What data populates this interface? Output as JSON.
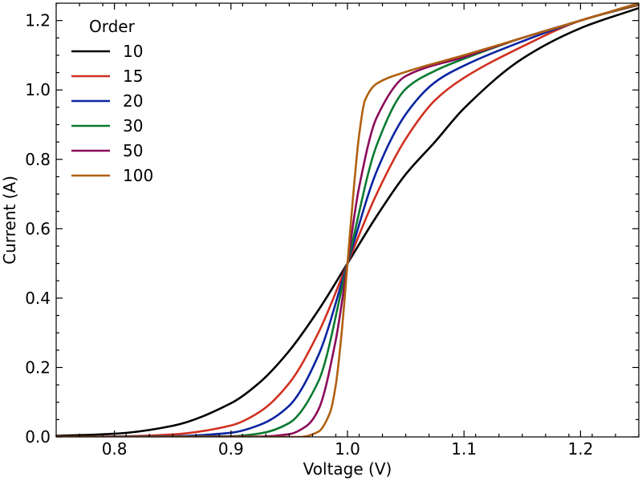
{
  "chart_data": {
    "type": "line",
    "title": "",
    "xlabel": "Voltage (V)",
    "ylabel": "Current (A)",
    "xlim": [
      0.75,
      1.25
    ],
    "ylim": [
      0.0,
      1.25
    ],
    "x_ticks": [
      0.8,
      0.9,
      1.0,
      1.1,
      1.2
    ],
    "x_tick_labels": [
      "0.8",
      "0.9",
      "1.0",
      "1.1",
      "1.2"
    ],
    "y_ticks": [
      0.0,
      0.2,
      0.4,
      0.6,
      0.8,
      1.0,
      1.2
    ],
    "y_tick_labels": [
      "0.0",
      "0.2",
      "0.4",
      "0.6",
      "0.8",
      "1.0",
      "1.2"
    ],
    "x_minor_step": 0.02,
    "y_minor_step": 0.05,
    "grid": false,
    "legend": {
      "title": "Order",
      "position": "top-left"
    },
    "series": [
      {
        "name": "10",
        "color": "#000000",
        "x": [
          0.75,
          0.8,
          0.85,
          0.9,
          0.925,
          0.95,
          0.975,
          1.0,
          1.025,
          1.05,
          1.075,
          1.1,
          1.15,
          1.2,
          1.25
        ],
        "y": [
          0.003,
          0.009,
          0.032,
          0.097,
          0.158,
          0.248,
          0.365,
          0.5,
          0.636,
          0.757,
          0.85,
          0.947,
          1.09,
          1.178,
          1.236
        ]
      },
      {
        "name": "15",
        "color": "#d03020",
        "x": [
          0.75,
          0.8,
          0.85,
          0.9,
          0.925,
          0.95,
          0.975,
          1.0,
          1.025,
          1.05,
          1.075,
          1.1,
          1.15,
          1.2,
          1.25
        ],
        "y": [
          0.0,
          0.001,
          0.007,
          0.033,
          0.073,
          0.155,
          0.3,
          0.5,
          0.7,
          0.859,
          0.97,
          1.035,
          1.125,
          1.2,
          1.245
        ]
      },
      {
        "name": "20",
        "color": "#0a24a0",
        "x": [
          0.75,
          0.85,
          0.9,
          0.925,
          0.95,
          0.975,
          1.0,
          1.025,
          1.05,
          1.075,
          1.1,
          1.15,
          1.2,
          1.25
        ],
        "y": [
          0.0,
          0.002,
          0.012,
          0.035,
          0.09,
          0.235,
          0.5,
          0.765,
          0.93,
          1.022,
          1.07,
          1.14,
          1.2,
          1.248
        ]
      },
      {
        "name": "30",
        "color": "#0a7a30",
        "x": [
          0.75,
          0.9,
          0.925,
          0.95,
          0.975,
          1.0,
          1.025,
          1.05,
          1.075,
          1.1,
          1.15,
          1.2,
          1.25
        ],
        "y": [
          0.0,
          0.002,
          0.01,
          0.04,
          0.16,
          0.5,
          0.84,
          1.003,
          1.055,
          1.09,
          1.15,
          1.2,
          1.248
        ]
      },
      {
        "name": "50",
        "color": "#8a0a5a",
        "x": [
          0.75,
          0.925,
          0.95,
          0.965,
          0.975,
          0.99,
          1.0,
          1.01,
          1.025,
          1.05,
          1.1,
          1.15,
          1.2,
          1.25
        ],
        "y": [
          0.0,
          0.001,
          0.008,
          0.032,
          0.078,
          0.28,
          0.5,
          0.72,
          0.92,
          1.04,
          1.095,
          1.15,
          1.2,
          1.25
        ]
      },
      {
        "name": "100",
        "color": "#b06010",
        "x": [
          0.75,
          0.96,
          0.975,
          0.985,
          0.99,
          0.995,
          1.0,
          1.005,
          1.01,
          1.015,
          1.025,
          1.05,
          1.1,
          1.15,
          1.2,
          1.25
        ],
        "y": [
          0.0,
          0.0,
          0.015,
          0.07,
          0.15,
          0.3,
          0.5,
          0.7,
          0.87,
          0.97,
          1.018,
          1.052,
          1.1,
          1.15,
          1.2,
          1.25
        ]
      }
    ]
  }
}
